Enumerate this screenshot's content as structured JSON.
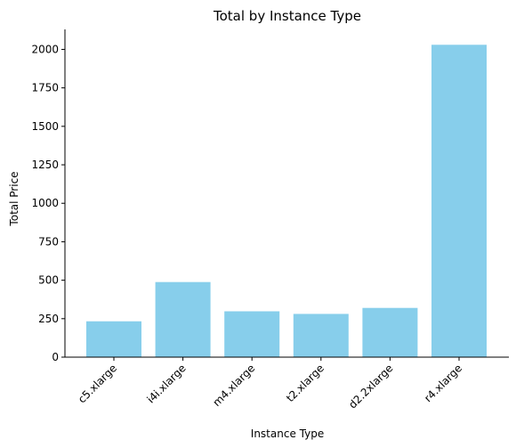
{
  "chart_data": {
    "type": "bar",
    "title": "Total by Instance Type",
    "xlabel": "Instance Type",
    "ylabel": "Total Price",
    "categories": [
      "c5.xlarge",
      "i4i.xlarge",
      "m4.xlarge",
      "t2.xlarge",
      "d2.2xlarge",
      "r4.xlarge"
    ],
    "values": [
      233,
      488,
      298,
      281,
      320,
      2030
    ],
    "ylim": [
      0,
      2130
    ],
    "yticks": [
      0,
      250,
      500,
      750,
      1000,
      1250,
      1500,
      1750,
      2000
    ],
    "bar_color": "#87ceeb",
    "grid": false,
    "legend": "none"
  }
}
